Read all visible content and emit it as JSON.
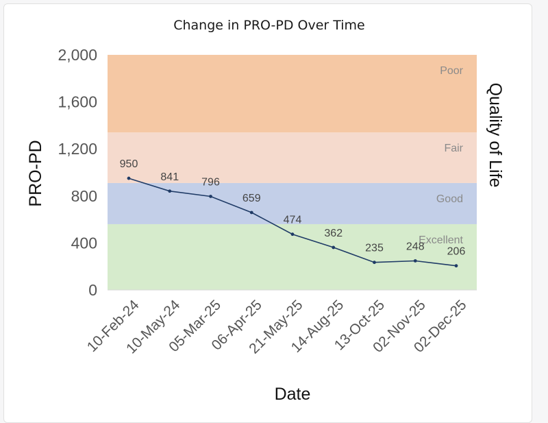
{
  "chart_data": {
    "type": "line",
    "title": "Change in PRO-PD Over Time",
    "xlabel": "Date",
    "ylabel": "PRO-PD",
    "y2label": "Quality of Life",
    "ylim": [
      0,
      2000
    ],
    "yticks": [
      0,
      400,
      800,
      1200,
      1600,
      2000
    ],
    "ytick_labels": [
      "0",
      "400",
      "800",
      "1,200",
      "1,600",
      "2,000"
    ],
    "categories": [
      "10-Feb-24",
      "10-May-24",
      "05-Mar-25",
      "06-Apr-25",
      "21-May-25",
      "14-Aug-25",
      "13-Oct-25",
      "02-Nov-25",
      "02-Dec-25"
    ],
    "values": [
      950,
      841,
      796,
      659,
      474,
      362,
      235,
      248,
      206
    ],
    "data_labels": [
      "950",
      "841",
      "796",
      "659",
      "474",
      "362",
      "235",
      "248",
      "206"
    ],
    "grid": false,
    "line_color": "#1f3b66",
    "bands": [
      {
        "label": "Excellent",
        "from": 0,
        "to": 560,
        "color": "#d6ebcc"
      },
      {
        "label": "Good",
        "from": 560,
        "to": 910,
        "color": "#c3cfe8"
      },
      {
        "label": "Fair",
        "from": 910,
        "to": 1340,
        "color": "#f5dacd"
      },
      {
        "label": "Poor",
        "from": 1340,
        "to": 2000,
        "color": "#f5c8a4"
      }
    ]
  }
}
